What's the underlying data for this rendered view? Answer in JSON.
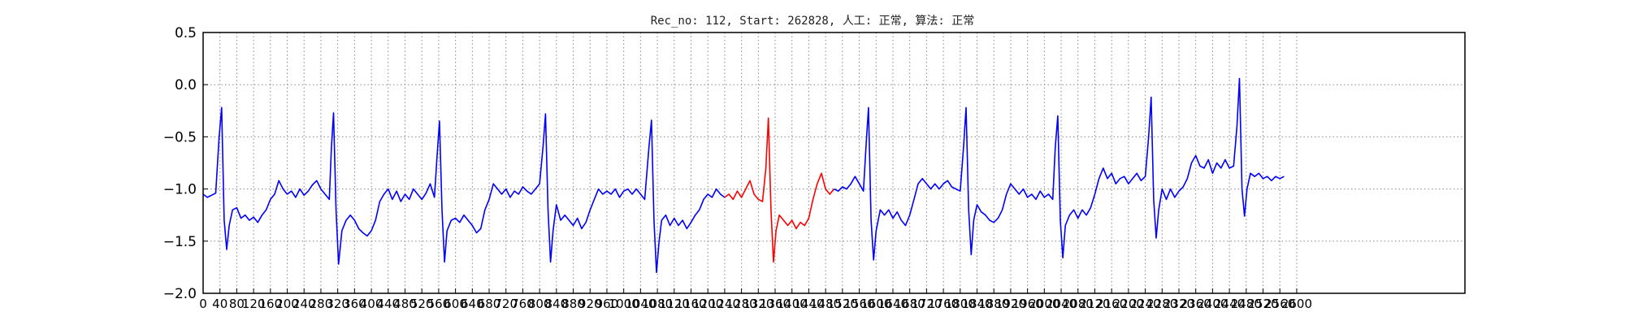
{
  "chart_data": {
    "type": "line",
    "title": "Rec_no: 112, Start: 262828, 人工: 正常, 算法: 正常",
    "xlabel": "",
    "ylabel": "",
    "xlim": [
      0,
      3000
    ],
    "ylim": [
      -2.0,
      0.5
    ],
    "grid": true,
    "legend": "none",
    "yticks": [
      0.5,
      0.0,
      -0.5,
      -1.0,
      -1.5,
      -2.0
    ],
    "ytick_labels": [
      "0.5",
      "0.0",
      "−0.5",
      "−1.0",
      "−1.5",
      "−2.0"
    ],
    "xticks": [
      0,
      40,
      80,
      120,
      160,
      200,
      240,
      280,
      320,
      360,
      400,
      440,
      480,
      520,
      560,
      600,
      640,
      680,
      720,
      760,
      800,
      840,
      880,
      920,
      960,
      1000,
      1040,
      1080,
      1120,
      1160,
      1200,
      1240,
      1280,
      1320,
      1360,
      1400,
      1440,
      1480,
      1520,
      1560,
      1600,
      1640,
      1680,
      1720,
      1760,
      1800,
      1840,
      1880,
      1920,
      1960,
      2000,
      2040,
      2080,
      2120,
      2160,
      2200,
      2240,
      2280,
      2320,
      2360,
      2400,
      2440,
      2480,
      2520,
      2560,
      2600
    ],
    "series": [
      {
        "color": "#0000ff",
        "role": "ecg-before",
        "points": [
          [
            0,
            -1.05
          ],
          [
            10,
            -1.08
          ],
          [
            20,
            -1.06
          ],
          [
            30,
            -1.04
          ],
          [
            38,
            -0.5
          ],
          [
            44,
            -0.22
          ],
          [
            50,
            -1.3
          ],
          [
            56,
            -1.58
          ],
          [
            62,
            -1.35
          ],
          [
            70,
            -1.2
          ],
          [
            80,
            -1.18
          ],
          [
            90,
            -1.28
          ],
          [
            100,
            -1.25
          ],
          [
            110,
            -1.3
          ],
          [
            120,
            -1.27
          ],
          [
            130,
            -1.32
          ],
          [
            140,
            -1.25
          ],
          [
            150,
            -1.2
          ],
          [
            160,
            -1.1
          ],
          [
            170,
            -1.05
          ],
          [
            180,
            -0.92
          ],
          [
            190,
            -1.0
          ],
          [
            200,
            -1.05
          ],
          [
            210,
            -1.02
          ],
          [
            220,
            -1.08
          ],
          [
            230,
            -1.0
          ],
          [
            240,
            -1.06
          ],
          [
            250,
            -1.02
          ],
          [
            260,
            -0.96
          ],
          [
            270,
            -0.92
          ],
          [
            280,
            -1.0
          ],
          [
            290,
            -1.05
          ],
          [
            300,
            -1.1
          ],
          [
            305,
            -0.6
          ],
          [
            310,
            -0.27
          ],
          [
            316,
            -1.2
          ],
          [
            322,
            -1.72
          ],
          [
            330,
            -1.4
          ],
          [
            340,
            -1.3
          ],
          [
            350,
            -1.25
          ],
          [
            360,
            -1.3
          ],
          [
            370,
            -1.38
          ],
          [
            380,
            -1.42
          ],
          [
            390,
            -1.45
          ],
          [
            400,
            -1.4
          ],
          [
            410,
            -1.3
          ],
          [
            420,
            -1.12
          ],
          [
            430,
            -1.05
          ],
          [
            440,
            -1.0
          ],
          [
            450,
            -1.1
          ],
          [
            460,
            -1.02
          ],
          [
            470,
            -1.12
          ],
          [
            480,
            -1.05
          ],
          [
            490,
            -1.1
          ],
          [
            500,
            -1.0
          ],
          [
            510,
            -1.05
          ],
          [
            520,
            -1.1
          ],
          [
            530,
            -1.04
          ],
          [
            540,
            -0.95
          ],
          [
            550,
            -1.08
          ],
          [
            556,
            -0.7
          ],
          [
            562,
            -0.35
          ],
          [
            568,
            -1.2
          ],
          [
            574,
            -1.7
          ],
          [
            580,
            -1.4
          ],
          [
            590,
            -1.3
          ],
          [
            600,
            -1.28
          ],
          [
            610,
            -1.32
          ],
          [
            620,
            -1.25
          ],
          [
            630,
            -1.3
          ],
          [
            640,
            -1.35
          ],
          [
            650,
            -1.42
          ],
          [
            660,
            -1.38
          ],
          [
            670,
            -1.2
          ],
          [
            680,
            -1.1
          ],
          [
            690,
            -0.95
          ],
          [
            700,
            -1.0
          ],
          [
            710,
            -1.05
          ],
          [
            720,
            -1.0
          ],
          [
            730,
            -1.08
          ],
          [
            740,
            -1.02
          ],
          [
            750,
            -1.05
          ],
          [
            760,
            -0.98
          ],
          [
            770,
            -1.02
          ],
          [
            780,
            -1.05
          ],
          [
            790,
            -1.0
          ],
          [
            800,
            -0.95
          ],
          [
            808,
            -0.6
          ],
          [
            814,
            -0.28
          ],
          [
            820,
            -1.2
          ],
          [
            826,
            -1.7
          ],
          [
            832,
            -1.4
          ],
          [
            840,
            -1.15
          ],
          [
            850,
            -1.3
          ],
          [
            860,
            -1.25
          ],
          [
            870,
            -1.3
          ],
          [
            880,
            -1.35
          ],
          [
            890,
            -1.28
          ],
          [
            900,
            -1.38
          ],
          [
            910,
            -1.32
          ],
          [
            920,
            -1.2
          ],
          [
            930,
            -1.1
          ],
          [
            940,
            -1.0
          ],
          [
            950,
            -1.05
          ],
          [
            960,
            -1.02
          ],
          [
            970,
            -1.05
          ],
          [
            980,
            -1.0
          ],
          [
            990,
            -1.08
          ],
          [
            1000,
            -1.02
          ],
          [
            1010,
            -1.0
          ],
          [
            1020,
            -1.05
          ],
          [
            1030,
            -1.0
          ],
          [
            1040,
            -1.05
          ],
          [
            1050,
            -1.1
          ],
          [
            1060,
            -0.6
          ],
          [
            1066,
            -0.34
          ],
          [
            1072,
            -1.3
          ],
          [
            1078,
            -1.8
          ],
          [
            1084,
            -1.5
          ],
          [
            1090,
            -1.3
          ],
          [
            1100,
            -1.25
          ],
          [
            1110,
            -1.35
          ],
          [
            1120,
            -1.28
          ],
          [
            1130,
            -1.35
          ],
          [
            1140,
            -1.3
          ],
          [
            1150,
            -1.38
          ],
          [
            1160,
            -1.32
          ],
          [
            1170,
            -1.25
          ],
          [
            1180,
            -1.2
          ],
          [
            1190,
            -1.1
          ],
          [
            1200,
            -1.05
          ],
          [
            1210,
            -1.08
          ],
          [
            1220,
            -1.0
          ],
          [
            1230,
            -1.05
          ],
          [
            1240,
            -1.08
          ]
        ]
      },
      {
        "color": "#ff0000",
        "role": "ecg-highlighted-beat",
        "points": [
          [
            1240,
            -1.08
          ],
          [
            1250,
            -1.05
          ],
          [
            1260,
            -1.1
          ],
          [
            1270,
            -1.02
          ],
          [
            1280,
            -1.08
          ],
          [
            1290,
            -1.0
          ],
          [
            1300,
            -0.92
          ],
          [
            1310,
            -1.05
          ],
          [
            1320,
            -1.1
          ],
          [
            1330,
            -1.12
          ],
          [
            1338,
            -0.8
          ],
          [
            1344,
            -0.32
          ],
          [
            1350,
            -1.2
          ],
          [
            1356,
            -1.7
          ],
          [
            1362,
            -1.4
          ],
          [
            1370,
            -1.25
          ],
          [
            1380,
            -1.3
          ],
          [
            1390,
            -1.35
          ],
          [
            1400,
            -1.3
          ],
          [
            1410,
            -1.38
          ],
          [
            1420,
            -1.32
          ],
          [
            1430,
            -1.35
          ],
          [
            1440,
            -1.28
          ],
          [
            1450,
            -1.1
          ],
          [
            1460,
            -0.95
          ],
          [
            1470,
            -0.85
          ],
          [
            1480,
            -1.0
          ],
          [
            1490,
            -1.05
          ],
          [
            1500,
            -1.0
          ]
        ]
      },
      {
        "color": "#0000ff",
        "role": "ecg-after",
        "points": [
          [
            1500,
            -1.0
          ],
          [
            1510,
            -1.02
          ],
          [
            1520,
            -0.98
          ],
          [
            1530,
            -1.0
          ],
          [
            1540,
            -0.95
          ],
          [
            1550,
            -0.88
          ],
          [
            1560,
            -0.95
          ],
          [
            1570,
            -1.02
          ],
          [
            1576,
            -0.6
          ],
          [
            1582,
            -0.22
          ],
          [
            1588,
            -1.3
          ],
          [
            1594,
            -1.68
          ],
          [
            1600,
            -1.4
          ],
          [
            1610,
            -1.2
          ],
          [
            1620,
            -1.25
          ],
          [
            1630,
            -1.2
          ],
          [
            1640,
            -1.28
          ],
          [
            1650,
            -1.22
          ],
          [
            1660,
            -1.3
          ],
          [
            1670,
            -1.35
          ],
          [
            1680,
            -1.25
          ],
          [
            1690,
            -1.1
          ],
          [
            1700,
            -0.95
          ],
          [
            1710,
            -0.9
          ],
          [
            1720,
            -0.95
          ],
          [
            1730,
            -1.0
          ],
          [
            1740,
            -0.95
          ],
          [
            1750,
            -1.0
          ],
          [
            1760,
            -0.95
          ],
          [
            1770,
            -0.92
          ],
          [
            1780,
            -0.98
          ],
          [
            1790,
            -1.0
          ],
          [
            1800,
            -1.02
          ],
          [
            1808,
            -0.6
          ],
          [
            1814,
            -0.22
          ],
          [
            1820,
            -1.2
          ],
          [
            1826,
            -1.63
          ],
          [
            1832,
            -1.3
          ],
          [
            1840,
            -1.15
          ],
          [
            1850,
            -1.22
          ],
          [
            1860,
            -1.25
          ],
          [
            1870,
            -1.3
          ],
          [
            1880,
            -1.32
          ],
          [
            1890,
            -1.28
          ],
          [
            1900,
            -1.2
          ],
          [
            1910,
            -1.05
          ],
          [
            1920,
            -0.95
          ],
          [
            1930,
            -1.0
          ],
          [
            1940,
            -1.05
          ],
          [
            1950,
            -1.0
          ],
          [
            1960,
            -1.08
          ],
          [
            1970,
            -1.05
          ],
          [
            1980,
            -1.1
          ],
          [
            1990,
            -1.02
          ],
          [
            2000,
            -1.08
          ],
          [
            2010,
            -1.05
          ],
          [
            2020,
            -1.1
          ],
          [
            2026,
            -0.6
          ],
          [
            2032,
            -0.3
          ],
          [
            2038,
            -1.3
          ],
          [
            2044,
            -1.66
          ],
          [
            2050,
            -1.35
          ],
          [
            2060,
            -1.25
          ],
          [
            2070,
            -1.2
          ],
          [
            2080,
            -1.28
          ],
          [
            2090,
            -1.2
          ],
          [
            2100,
            -1.25
          ],
          [
            2110,
            -1.18
          ],
          [
            2120,
            -1.05
          ],
          [
            2130,
            -0.9
          ],
          [
            2140,
            -0.8
          ],
          [
            2150,
            -0.9
          ],
          [
            2160,
            -0.85
          ],
          [
            2170,
            -0.95
          ],
          [
            2180,
            -0.9
          ],
          [
            2190,
            -0.88
          ],
          [
            2200,
            -0.95
          ],
          [
            2210,
            -0.9
          ],
          [
            2220,
            -0.85
          ],
          [
            2230,
            -0.92
          ],
          [
            2240,
            -0.88
          ],
          [
            2248,
            -0.5
          ],
          [
            2254,
            -0.12
          ],
          [
            2260,
            -1.1
          ],
          [
            2266,
            -1.47
          ],
          [
            2272,
            -1.2
          ],
          [
            2280,
            -1.0
          ],
          [
            2290,
            -1.1
          ],
          [
            2300,
            -1.0
          ],
          [
            2310,
            -1.08
          ],
          [
            2320,
            -1.02
          ],
          [
            2330,
            -0.98
          ],
          [
            2340,
            -0.9
          ],
          [
            2350,
            -0.75
          ],
          [
            2360,
            -0.68
          ],
          [
            2370,
            -0.78
          ],
          [
            2380,
            -0.8
          ],
          [
            2390,
            -0.72
          ],
          [
            2400,
            -0.85
          ],
          [
            2410,
            -0.75
          ],
          [
            2420,
            -0.8
          ],
          [
            2430,
            -0.72
          ],
          [
            2440,
            -0.8
          ],
          [
            2450,
            -0.78
          ],
          [
            2458,
            -0.4
          ],
          [
            2464,
            0.06
          ],
          [
            2470,
            -1.0
          ],
          [
            2476,
            -1.26
          ],
          [
            2482,
            -1.0
          ],
          [
            2490,
            -0.85
          ],
          [
            2500,
            -0.88
          ],
          [
            2510,
            -0.85
          ],
          [
            2520,
            -0.9
          ],
          [
            2530,
            -0.88
          ],
          [
            2540,
            -0.92
          ],
          [
            2550,
            -0.88
          ],
          [
            2560,
            -0.9
          ],
          [
            2570,
            -0.88
          ]
        ]
      }
    ]
  }
}
